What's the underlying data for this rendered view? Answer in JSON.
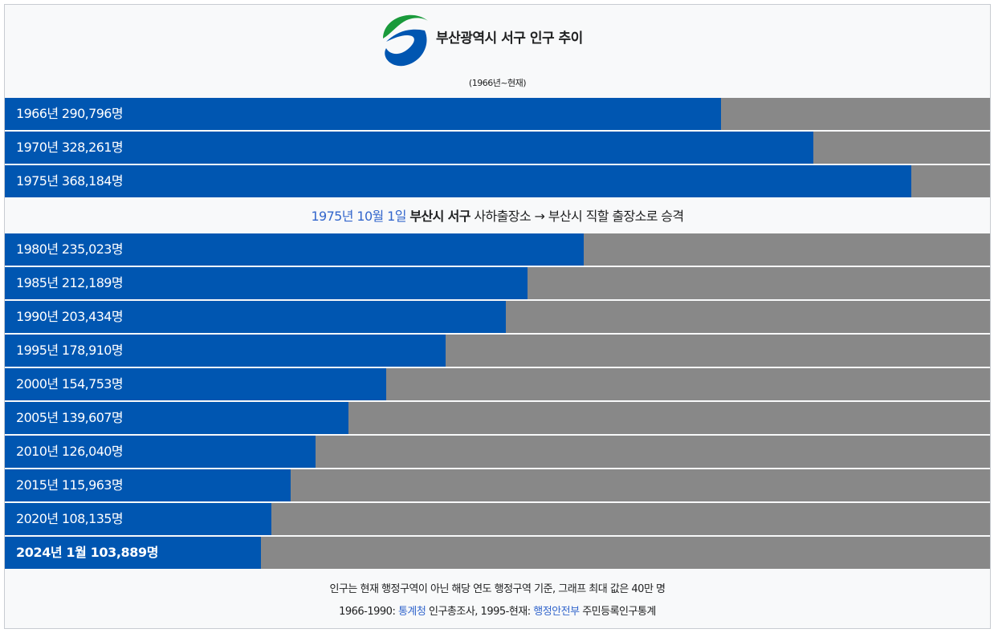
{
  "header": {
    "title": "부산광역시 서구 인구 추이",
    "subtitle": "(1966년~현재)",
    "logo_icon": "seo-gu-emblem-icon",
    "logo_colors": [
      "#1a9a3b",
      "#0056b1"
    ]
  },
  "chart_data": {
    "type": "bar",
    "orientation": "horizontal",
    "xlim": [
      0,
      400000
    ],
    "unit": "명",
    "bar_color": "#0056b1",
    "track_color": "#888888",
    "rows": [
      {
        "label": "1966년 290,796명",
        "year": 1966,
        "value": 290796,
        "bold": false
      },
      {
        "label": "1970년 328,261명",
        "year": 1970,
        "value": 328261,
        "bold": false
      },
      {
        "label": "1975년 368,184명",
        "year": 1975,
        "value": 368184,
        "bold": false
      },
      {
        "label": "1980년 235,023명",
        "year": 1980,
        "value": 235023,
        "bold": false
      },
      {
        "label": "1985년 212,189명",
        "year": 1985,
        "value": 212189,
        "bold": false
      },
      {
        "label": "1990년 203,434명",
        "year": 1990,
        "value": 203434,
        "bold": false
      },
      {
        "label": "1995년 178,910명",
        "year": 1995,
        "value": 178910,
        "bold": false
      },
      {
        "label": "2000년 154,753명",
        "year": 2000,
        "value": 154753,
        "bold": false
      },
      {
        "label": "2005년 139,607명",
        "year": 2005,
        "value": 139607,
        "bold": false
      },
      {
        "label": "2010년 126,040명",
        "year": 2010,
        "value": 126040,
        "bold": false
      },
      {
        "label": "2015년 115,963명",
        "year": 2015,
        "value": 115963,
        "bold": false
      },
      {
        "label": "2020년 108,135명",
        "year": 2020,
        "value": 108135,
        "bold": false
      },
      {
        "label": "2024년 1월 103,889명",
        "year": 2024,
        "value": 103889,
        "bold": true
      }
    ]
  },
  "event": {
    "date": "1975년 10월 1일",
    "place": "부산시 서구",
    "text": " 사하출장소 → 부산시 직할 출장소로 승격"
  },
  "footer": {
    "note": "인구는 현재 행정구역이 아닌 해당 연도 행정구역 기준, 그래프 최대 값은 40만 명",
    "source_prefix": "1966-1990: ",
    "source_link1": "통계청",
    "source_mid": " 인구총조사, 1995-현재: ",
    "source_link2": "행정안전부",
    "source_suffix": " 주민등록인구통계"
  }
}
